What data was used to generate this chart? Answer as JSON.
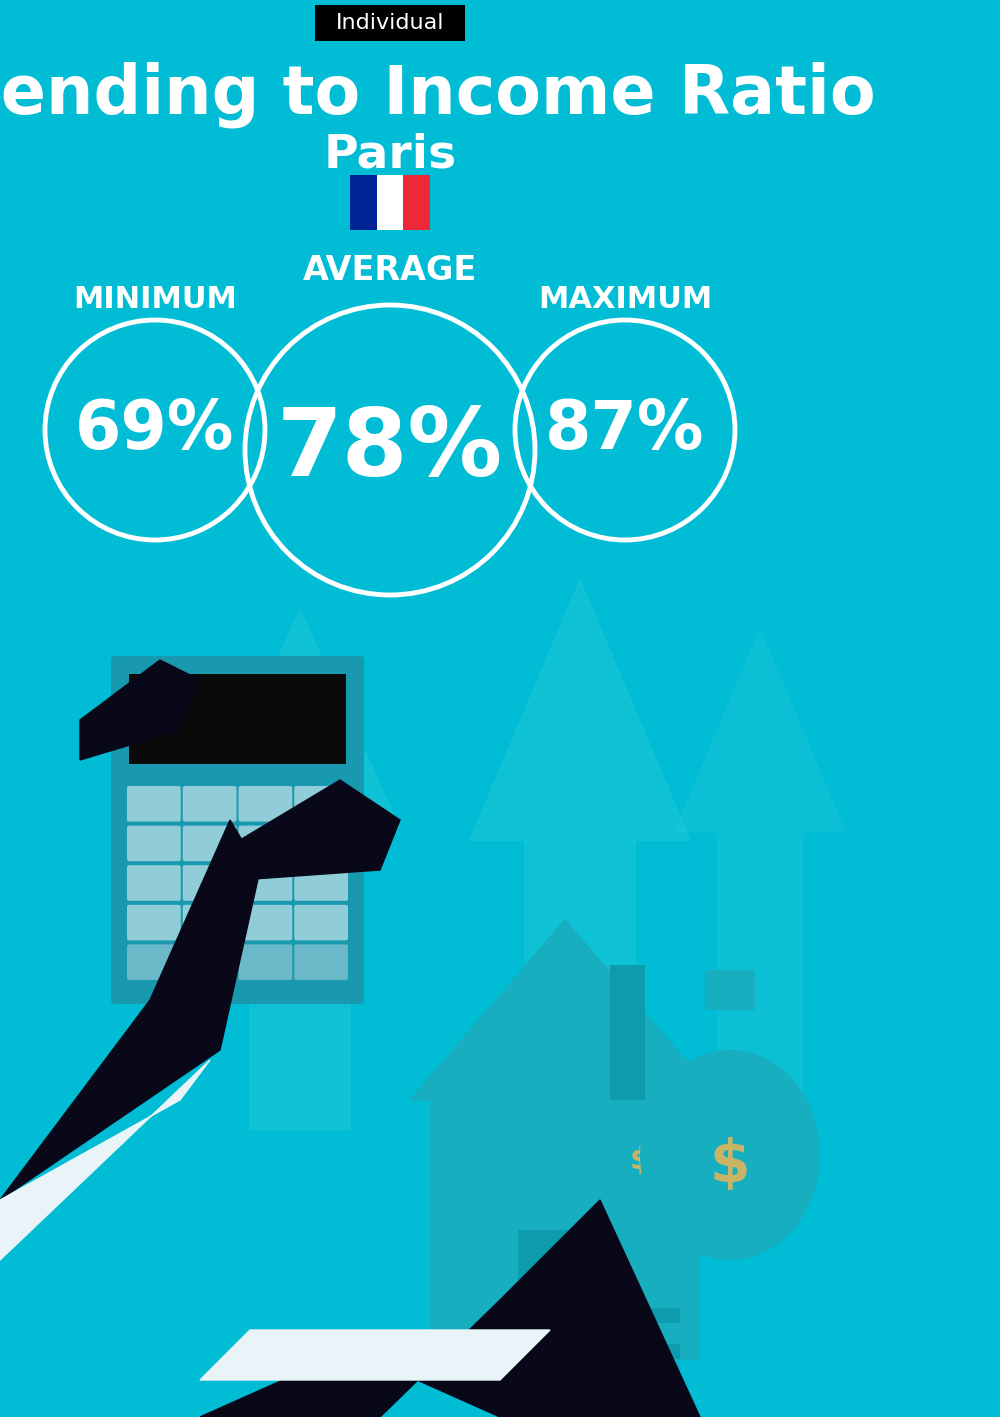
{
  "bg_color": "#00BCD4",
  "title": "Spending to Income Ratio",
  "city": "Paris",
  "tag_text": "Individual",
  "tag_bg": "#000000",
  "tag_text_color": "#ffffff",
  "min_label": "MINIMUM",
  "avg_label": "AVERAGE",
  "max_label": "MAXIMUM",
  "min_value": "69%",
  "avg_value": "78%",
  "max_value": "87%",
  "circle_color": "#ffffff",
  "text_color": "#ffffff",
  "france_blue": "#002395",
  "france_white": "#FFFFFF",
  "france_red": "#ED2939",
  "title_fontsize": 48,
  "city_fontsize": 34,
  "tag_fontsize": 16,
  "min_label_fontsize": 22,
  "avg_label_fontsize": 24,
  "max_label_fontsize": 22,
  "min_value_fontsize": 48,
  "avg_value_fontsize": 68,
  "max_value_fontsize": 48,
  "illus_bg": "#17C4D6",
  "arrow_color": "#1ABFCF",
  "calc_body": "#1899B0",
  "calc_screen": "#0a0a0a",
  "btn_light": "#90CDD8",
  "btn_mid": "#6BB8C8",
  "hand_color": "#080818",
  "cuff_color": "#e8f4f8",
  "house_color": "#17AEBF",
  "door_color": "#0D9BAD",
  "money_color": "#17AEBF",
  "dollar_color": "#C8B464",
  "chimney_color": "#0E9BAD"
}
